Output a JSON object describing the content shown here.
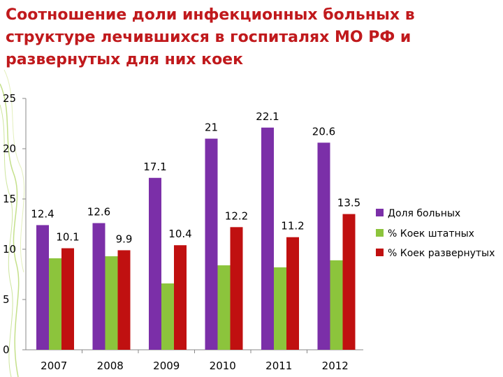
{
  "header": {
    "title": "Соотношение доли инфекционных больных в структуре лечившихся в госпиталях МО РФ и развернутых для них коек"
  },
  "colors": {
    "title": "#c0191c",
    "deco_green": "#9ccc3c",
    "series": [
      "#7b2fa8",
      "#8cc43c",
      "#c01010"
    ]
  },
  "chart_data": {
    "type": "bar",
    "categories": [
      "2007",
      "2008",
      "2009",
      "2010",
      "2011",
      "2012"
    ],
    "series": [
      {
        "name": "Доля больных",
        "values": [
          12.4,
          12.6,
          17.1,
          21,
          22.1,
          20.6
        ],
        "color": "#7b2fa8"
      },
      {
        "name": "% Коек штатных",
        "values": [
          9.1,
          9.3,
          6.6,
          8.4,
          8.2,
          8.9
        ],
        "color": "#8cc43c"
      },
      {
        "name": "% Коек развернутых",
        "values": [
          10.1,
          9.9,
          10.4,
          12.2,
          11.2,
          13.5
        ],
        "color": "#c01010"
      }
    ],
    "data_labels": {
      "Доля больных": [
        "12.4",
        "12.6",
        "17.1",
        "21",
        "22.1",
        "20.6"
      ],
      "% Коек развернутых": [
        "10.1",
        "9.9",
        "10.4",
        "12.2",
        "11.2",
        "13.5"
      ]
    },
    "y_ticks": [
      "0",
      "5",
      "10",
      "15",
      "20",
      "25"
    ],
    "ylim": [
      0,
      25
    ],
    "grid": false,
    "legend": "right"
  }
}
